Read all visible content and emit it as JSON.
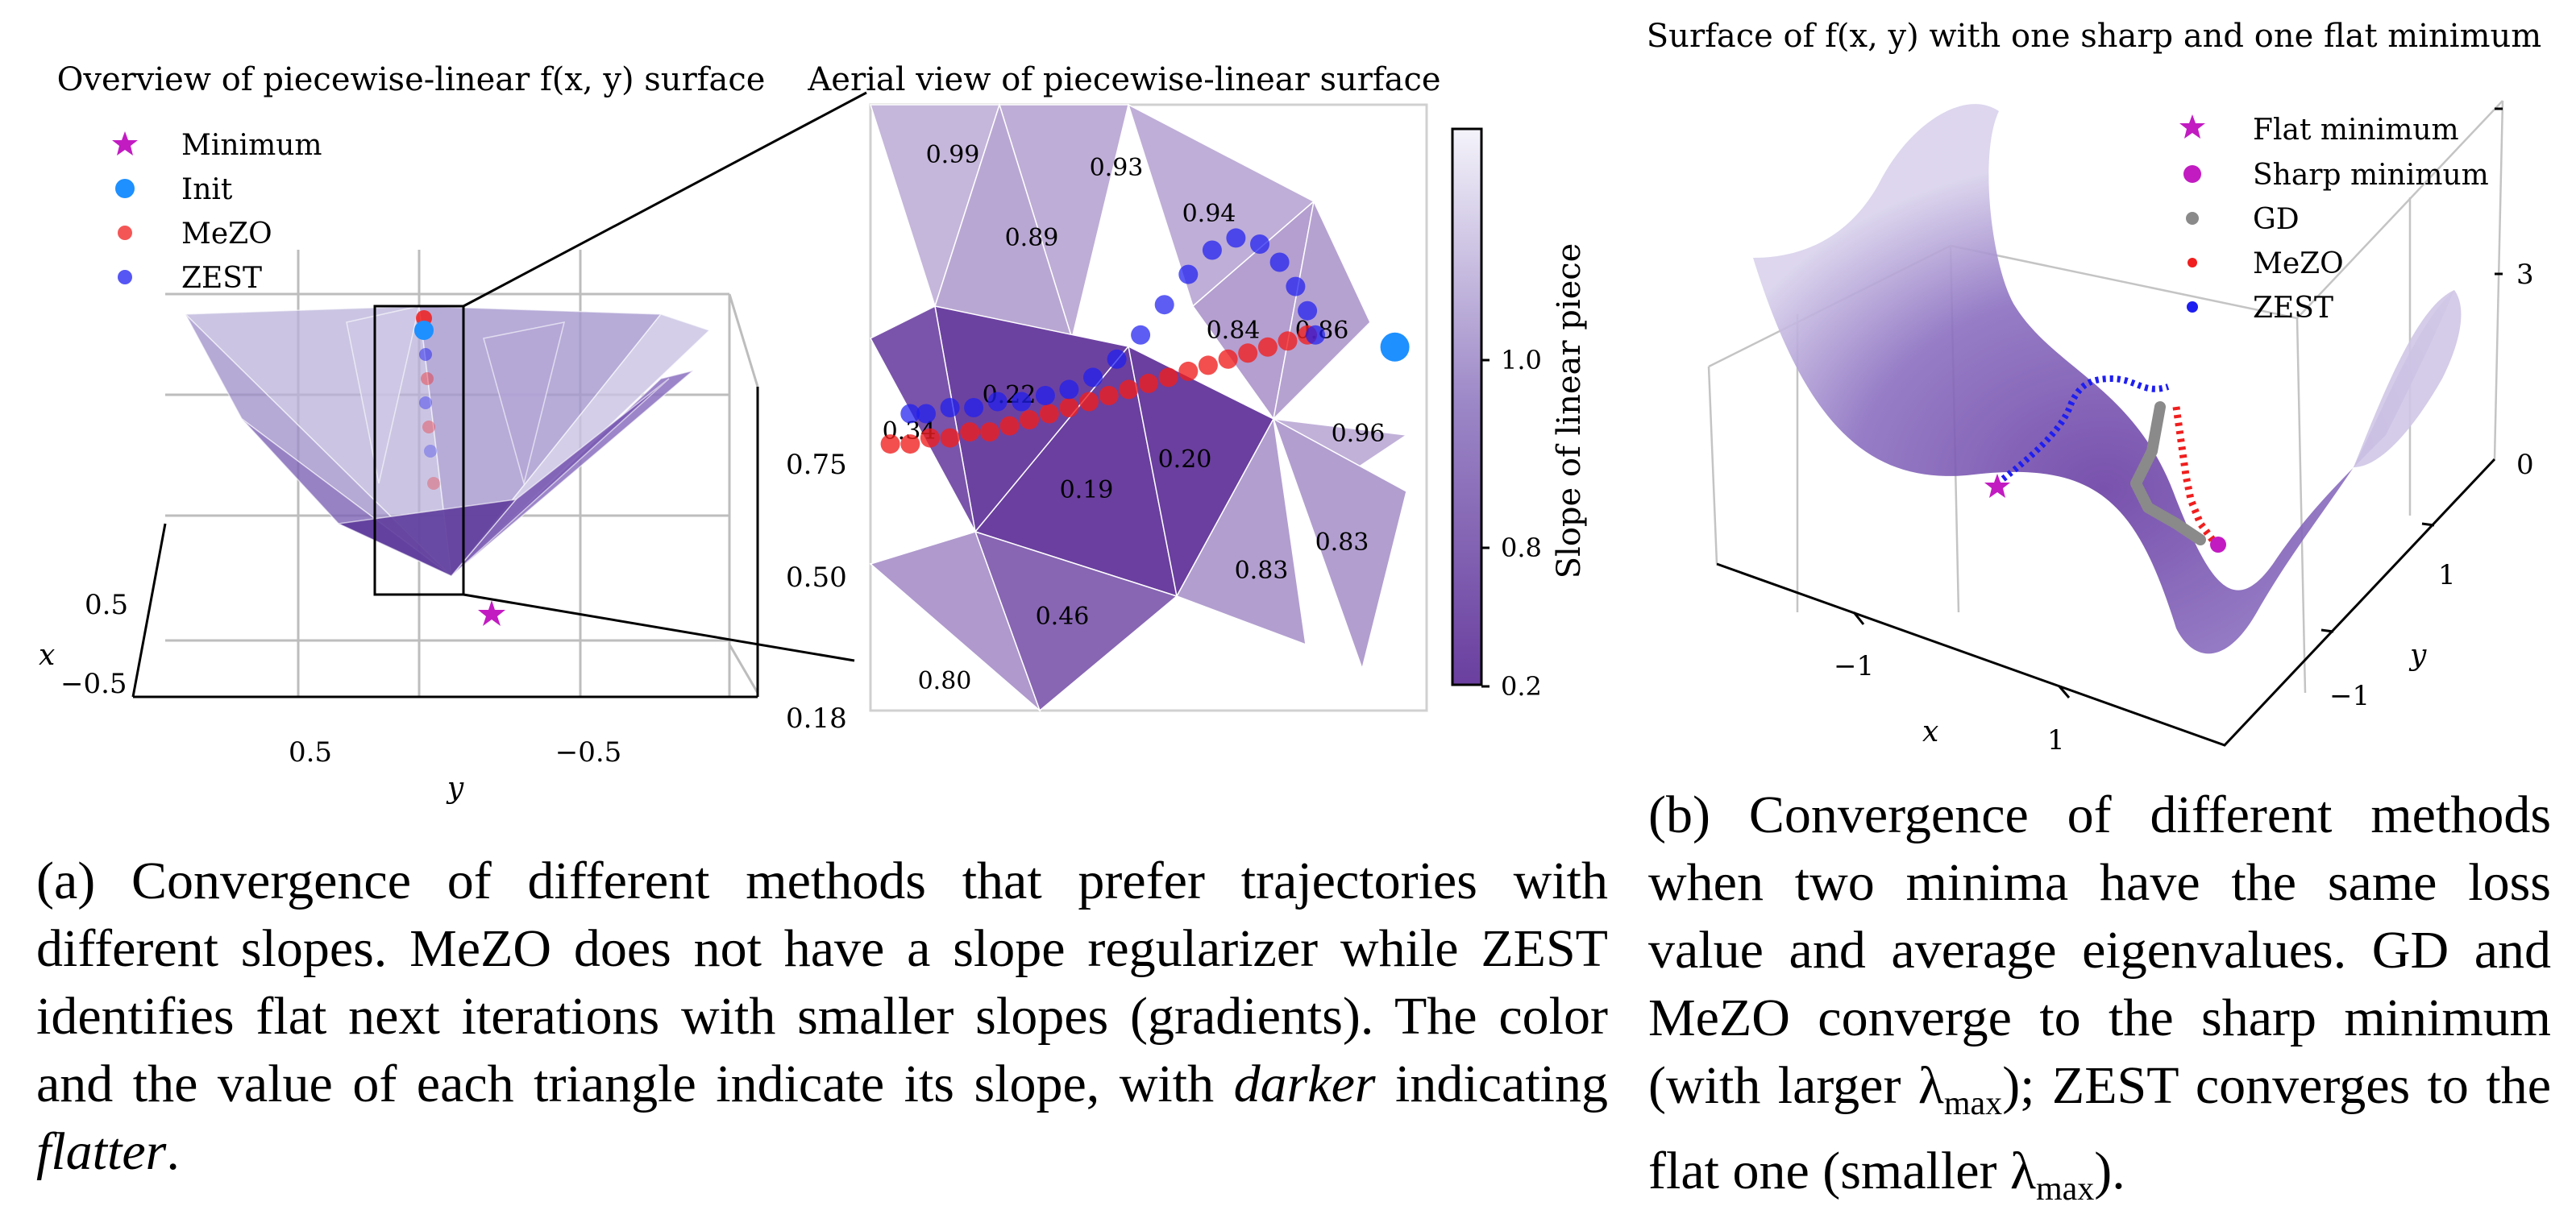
{
  "panel_a": {
    "overview": {
      "title": "Overview of piecewise-linear f(x, y) surface",
      "legend": [
        "Minimum",
        "Init",
        "MeZO",
        "ZEST"
      ],
      "x_label": "x",
      "y_label": "y",
      "x_ticks": [
        "0.5",
        "−0.5"
      ],
      "y_ticks": [
        "0.5",
        "−0.5"
      ],
      "z_ticks": [
        "0.75",
        "0.50",
        "0.18"
      ]
    },
    "aerial": {
      "title": "Aerial view of piecewise-linear surface",
      "colorbar_label": "Slope of linear piece",
      "colorbar_ticks": [
        "1.0",
        "0.8",
        "0.2"
      ]
    },
    "caption_html": "(a) Convergence of different methods that prefer trajectories with different slopes. MeZO does not have a slope regularizer while ZEST identifies flat next iterations with smaller slopes (gradients). The color and the value of each triangle indicate its slope, with <i>darker</i> indicating <i>flatter</i>."
  },
  "panel_b": {
    "title": "Surface of f(x, y) with one sharp and one flat minimum",
    "legend": [
      "Flat minimum",
      "Sharp minimum",
      "GD",
      "MeZO",
      "ZEST"
    ],
    "x_label": "x",
    "y_label": "y",
    "x_ticks": [
      "−1",
      "1"
    ],
    "y_ticks": [
      "1",
      "−1"
    ],
    "z_ticks": [
      "3",
      "0"
    ],
    "caption_html": "(b) Convergence of different methods when two minima have the same loss value and average eigenvalues. GD and MeZO converge to the sharp minimum (with larger λ<sub class=\"sub\">max</sub>); ZEST converges to the flat one (smaller λ<sub class=\"sub\">max</sub>)."
  },
  "colors": {
    "minimum": "#c21bc2",
    "init": "#1e90ff",
    "mezo": "#f01e1e",
    "zest": "#1e1ef0",
    "gd": "#8a8a8a",
    "surface": "#7a4fb0"
  },
  "chart_data": [
    {
      "type": "scatter",
      "title": "Aerial view of piecewise-linear surface",
      "triangle_slopes": [
        0.99,
        0.93,
        0.89,
        0.94,
        0.84,
        0.86,
        0.22,
        0.34,
        0.19,
        0.2,
        0.96,
        0.83,
        0.83,
        0.46,
        0.8
      ],
      "colorbar": {
        "label": "Slope of linear piece",
        "ticks": [
          0.2,
          0.8,
          1.0
        ],
        "range": [
          0.2,
          1.4
        ]
      },
      "series": [
        {
          "name": "MeZO",
          "x": [
            0.4,
            0.35,
            0.3,
            0.25,
            0.2,
            0.15,
            0.1,
            0.05,
            0.0,
            -0.05,
            -0.1,
            -0.15,
            -0.2,
            -0.25,
            -0.3,
            -0.35,
            -0.4,
            -0.45,
            -0.5,
            -0.55,
            -0.6,
            -0.65
          ],
          "y": [
            0.12,
            0.11,
            0.1,
            0.09,
            0.08,
            0.07,
            0.06,
            0.05,
            0.04,
            0.03,
            0.02,
            0.01,
            0.0,
            -0.01,
            -0.02,
            -0.03,
            -0.04,
            -0.04,
            -0.05,
            -0.05,
            -0.06,
            -0.06
          ]
        },
        {
          "name": "ZEST",
          "x": [
            0.42,
            0.4,
            0.37,
            0.33,
            0.28,
            0.22,
            0.16,
            0.1,
            0.04,
            -0.02,
            -0.08,
            -0.14,
            -0.2,
            -0.26,
            -0.32,
            -0.38,
            -0.44,
            -0.5,
            -0.56,
            -0.6
          ],
          "y": [
            0.12,
            0.16,
            0.2,
            0.24,
            0.27,
            0.28,
            0.26,
            0.22,
            0.17,
            0.12,
            0.08,
            0.05,
            0.03,
            0.02,
            0.01,
            0.01,
            0.0,
            0.0,
            -0.01,
            -0.01
          ]
        },
        {
          "name": "Init",
          "x": [
            0.62
          ],
          "y": [
            0.1
          ]
        }
      ]
    }
  ]
}
